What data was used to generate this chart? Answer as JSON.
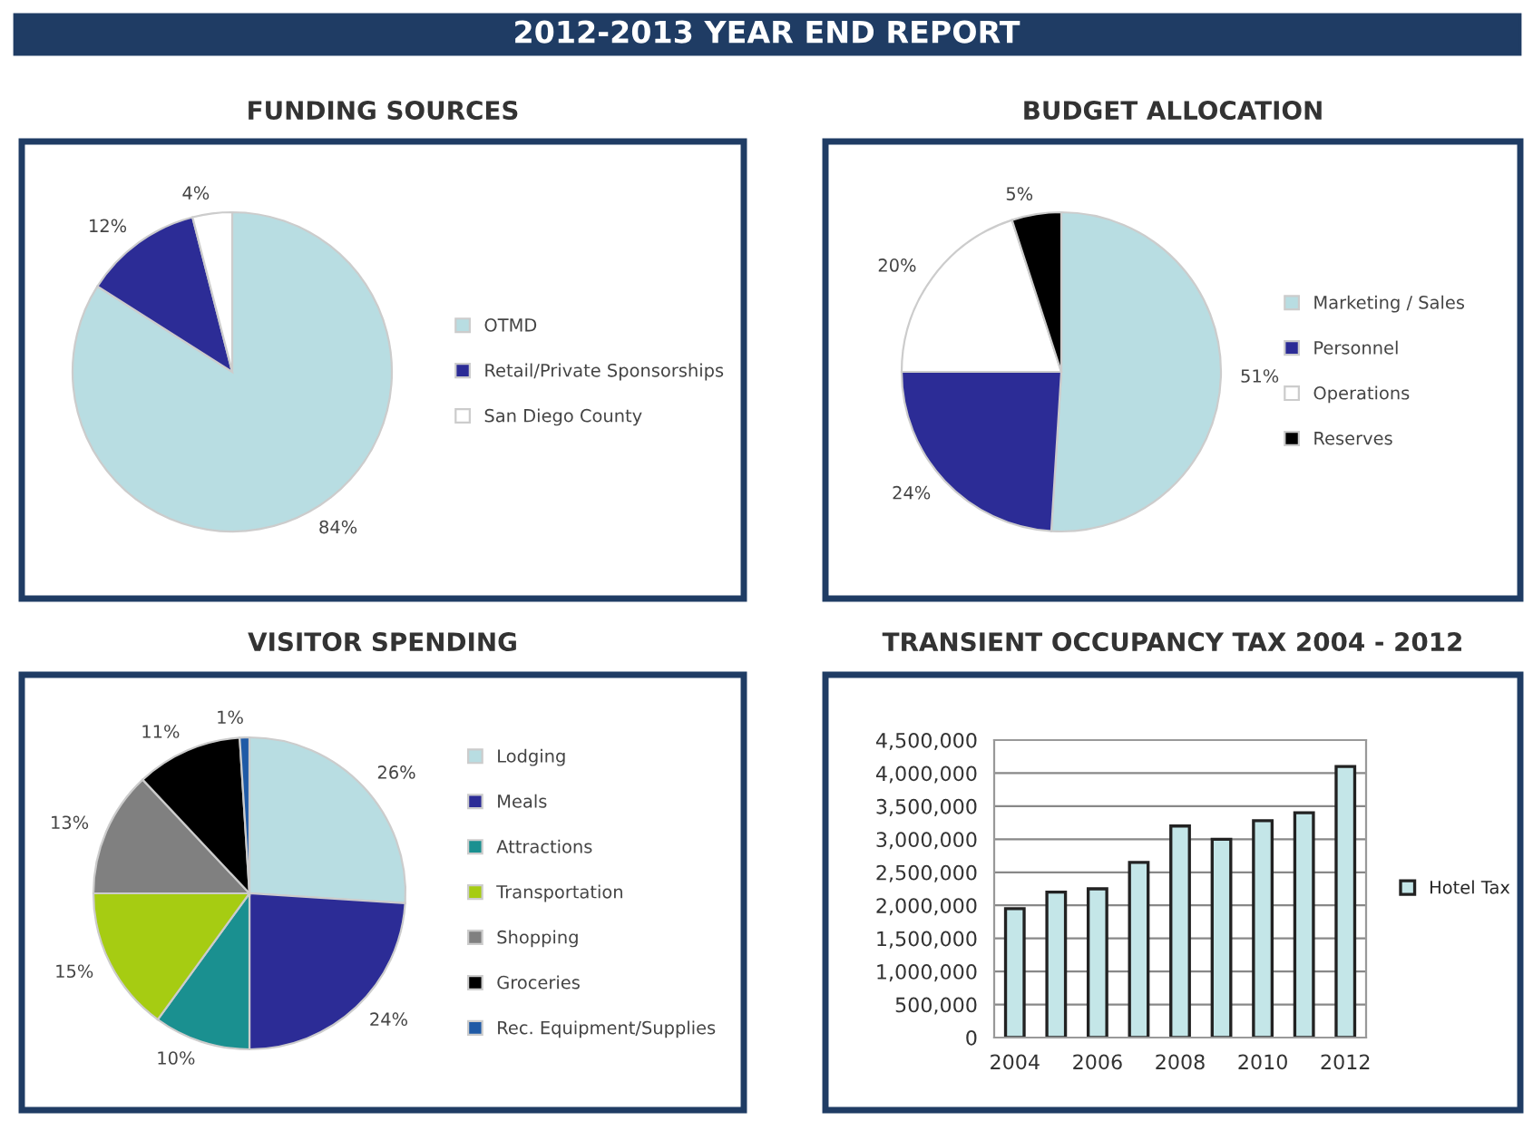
{
  "chart_data": [
    {
      "type": "other",
      "title": "2012-2013 YEAR END REPORT"
    },
    {
      "type": "pie",
      "title": "FUNDING SOURCES",
      "categories": [
        "OTMD",
        "Retail/Private Sponsorships",
        "San Diego County"
      ],
      "values": [
        84,
        12,
        4
      ],
      "value_labels": [
        "84%",
        "12%",
        "4%"
      ],
      "colors": [
        "#b8dde2",
        "#2c2c96",
        "#ffffff"
      ],
      "legend": "right"
    },
    {
      "type": "pie",
      "title": "BUDGET ALLOCATION",
      "categories": [
        "Marketing / Sales",
        "Personnel",
        "Operations",
        "Reserves"
      ],
      "values": [
        51,
        24,
        20,
        5
      ],
      "value_labels": [
        "51%",
        "24%",
        "20%",
        "5%"
      ],
      "colors": [
        "#b8dde2",
        "#2c2c96",
        "#ffffff",
        "#000000"
      ],
      "legend": "right"
    },
    {
      "type": "pie",
      "title": "VISITOR SPENDING",
      "categories": [
        "Lodging",
        "Meals",
        "Attractions",
        "Transportation",
        "Shopping",
        "Groceries",
        "Rec. Equipment/Supplies"
      ],
      "values": [
        26,
        24,
        10,
        15,
        13,
        11,
        1
      ],
      "value_labels": [
        "26%",
        "24%",
        "10%",
        "15%",
        "13%",
        "11%",
        "1%"
      ],
      "colors": [
        "#b8dde2",
        "#2c2c96",
        "#1a9090",
        "#a6cc12",
        "#808080",
        "#000000",
        "#1f5aa6"
      ],
      "legend": "right"
    },
    {
      "type": "bar",
      "title": "TRANSIENT OCCUPANCY TAX 2004 - 2012",
      "categories": [
        "2004",
        null,
        "2006",
        null,
        "2008",
        null,
        "2010",
        null,
        "2012"
      ],
      "series": [
        {
          "name": "Hotel Tax",
          "color": "#c4e6e8",
          "values": [
            1950000,
            2200000,
            2250000,
            2650000,
            3200000,
            3000000,
            3280000,
            3400000,
            4100000
          ]
        }
      ],
      "ylim": [
        0,
        4500000
      ],
      "yticks": [
        {
          "value": 0,
          "label": "0"
        },
        {
          "value": 500000,
          "label": "500,000"
        },
        {
          "value": 1000000,
          "label": "1,000,000"
        },
        {
          "value": 1500000,
          "label": "1,500,000"
        },
        {
          "value": 2000000,
          "label": "2,000,000"
        },
        {
          "value": 2500000,
          "label": "2,500,000"
        },
        {
          "value": 3000000,
          "label": "3,000,000"
        },
        {
          "value": 3500000,
          "label": "3,500,000"
        },
        {
          "value": 4000000,
          "label": "4,000,000"
        },
        {
          "value": 4500000,
          "label": "4,500,000"
        }
      ],
      "grid": "y",
      "legend": "right"
    }
  ]
}
